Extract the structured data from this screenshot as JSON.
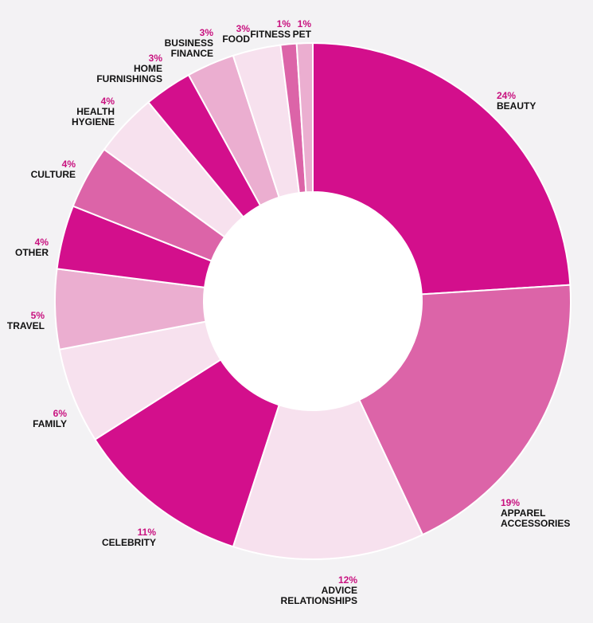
{
  "chart_data": {
    "type": "pie",
    "variant": "donut",
    "title": "",
    "unit": "%",
    "slices": [
      {
        "label": [
          "BEAUTY"
        ],
        "value": 24,
        "pct_label": "24%",
        "color": "#d30f8c"
      },
      {
        "label": [
          "APPAREL",
          "ACCESSORIES"
        ],
        "value": 19,
        "pct_label": "19%",
        "color": "#dc64a8"
      },
      {
        "label": [
          "ADVICE",
          "RELATIONSHIPS"
        ],
        "value": 12,
        "pct_label": "12%",
        "color": "#f7e1ee"
      },
      {
        "label": [
          "CELEBRITY"
        ],
        "value": 11,
        "pct_label": "11%",
        "color": "#d30f8c"
      },
      {
        "label": [
          "FAMILY"
        ],
        "value": 6,
        "pct_label": "6%",
        "color": "#f7e1ee"
      },
      {
        "label": [
          "TRAVEL"
        ],
        "value": 5,
        "pct_label": "5%",
        "color": "#ebaed0"
      },
      {
        "label": [
          "OTHER"
        ],
        "value": 4,
        "pct_label": "4%",
        "color": "#d30f8c"
      },
      {
        "label": [
          "CULTURE"
        ],
        "value": 4,
        "pct_label": "4%",
        "color": "#dc64a8"
      },
      {
        "label": [
          "HEALTH",
          "HYGIENE"
        ],
        "value": 4,
        "pct_label": "4%",
        "color": "#f7e1ee"
      },
      {
        "label": [
          "HOME",
          "FURNISHINGS"
        ],
        "value": 3,
        "pct_label": "3%",
        "color": "#d30f8c"
      },
      {
        "label": [
          "BUSINESS",
          "FINANCE"
        ],
        "value": 3,
        "pct_label": "3%",
        "color": "#ebaed0"
      },
      {
        "label": [
          "FOOD"
        ],
        "value": 3,
        "pct_label": "3%",
        "color": "#f7e1ee"
      },
      {
        "label": [
          "FITNESS"
        ],
        "value": 1,
        "pct_label": "1%",
        "color": "#dc64a8"
      },
      {
        "label": [
          "PET"
        ],
        "value": 1,
        "pct_label": "1%",
        "color": "#ebaed0"
      }
    ],
    "pct_color": "#c8127f",
    "label_color": "#111111",
    "legend": "none"
  }
}
